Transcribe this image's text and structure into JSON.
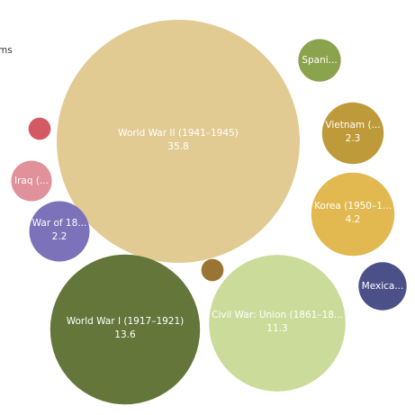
{
  "chart_data": {
    "type": "bubble",
    "legend_fragment": "ms",
    "categories": [
      "World War II (1941–1945)",
      "World War I (1917–1921)",
      "Civil War: Union (1861–18...",
      "Korea (1950–1...",
      "Vietnam (...",
      "War of 18...",
      "Iraq (...",
      "Spani...",
      "Mexica...",
      null,
      null
    ],
    "values": [
      35.8,
      13.6,
      11.3,
      4.2,
      2.3,
      2.2,
      1.0,
      1.1,
      1.4,
      0.3,
      0.3
    ],
    "show_values": [
      true,
      true,
      true,
      true,
      true,
      true,
      false,
      false,
      false,
      false,
      false
    ],
    "colors": [
      "#e2cb93",
      "#64763a",
      "#cbdb9a",
      "#e2b951",
      "#bf9a3a",
      "#7b72b9",
      "#e0919a",
      "#8ca34e",
      "#4c5088",
      "#d35a64",
      "#9a7435"
    ]
  }
}
